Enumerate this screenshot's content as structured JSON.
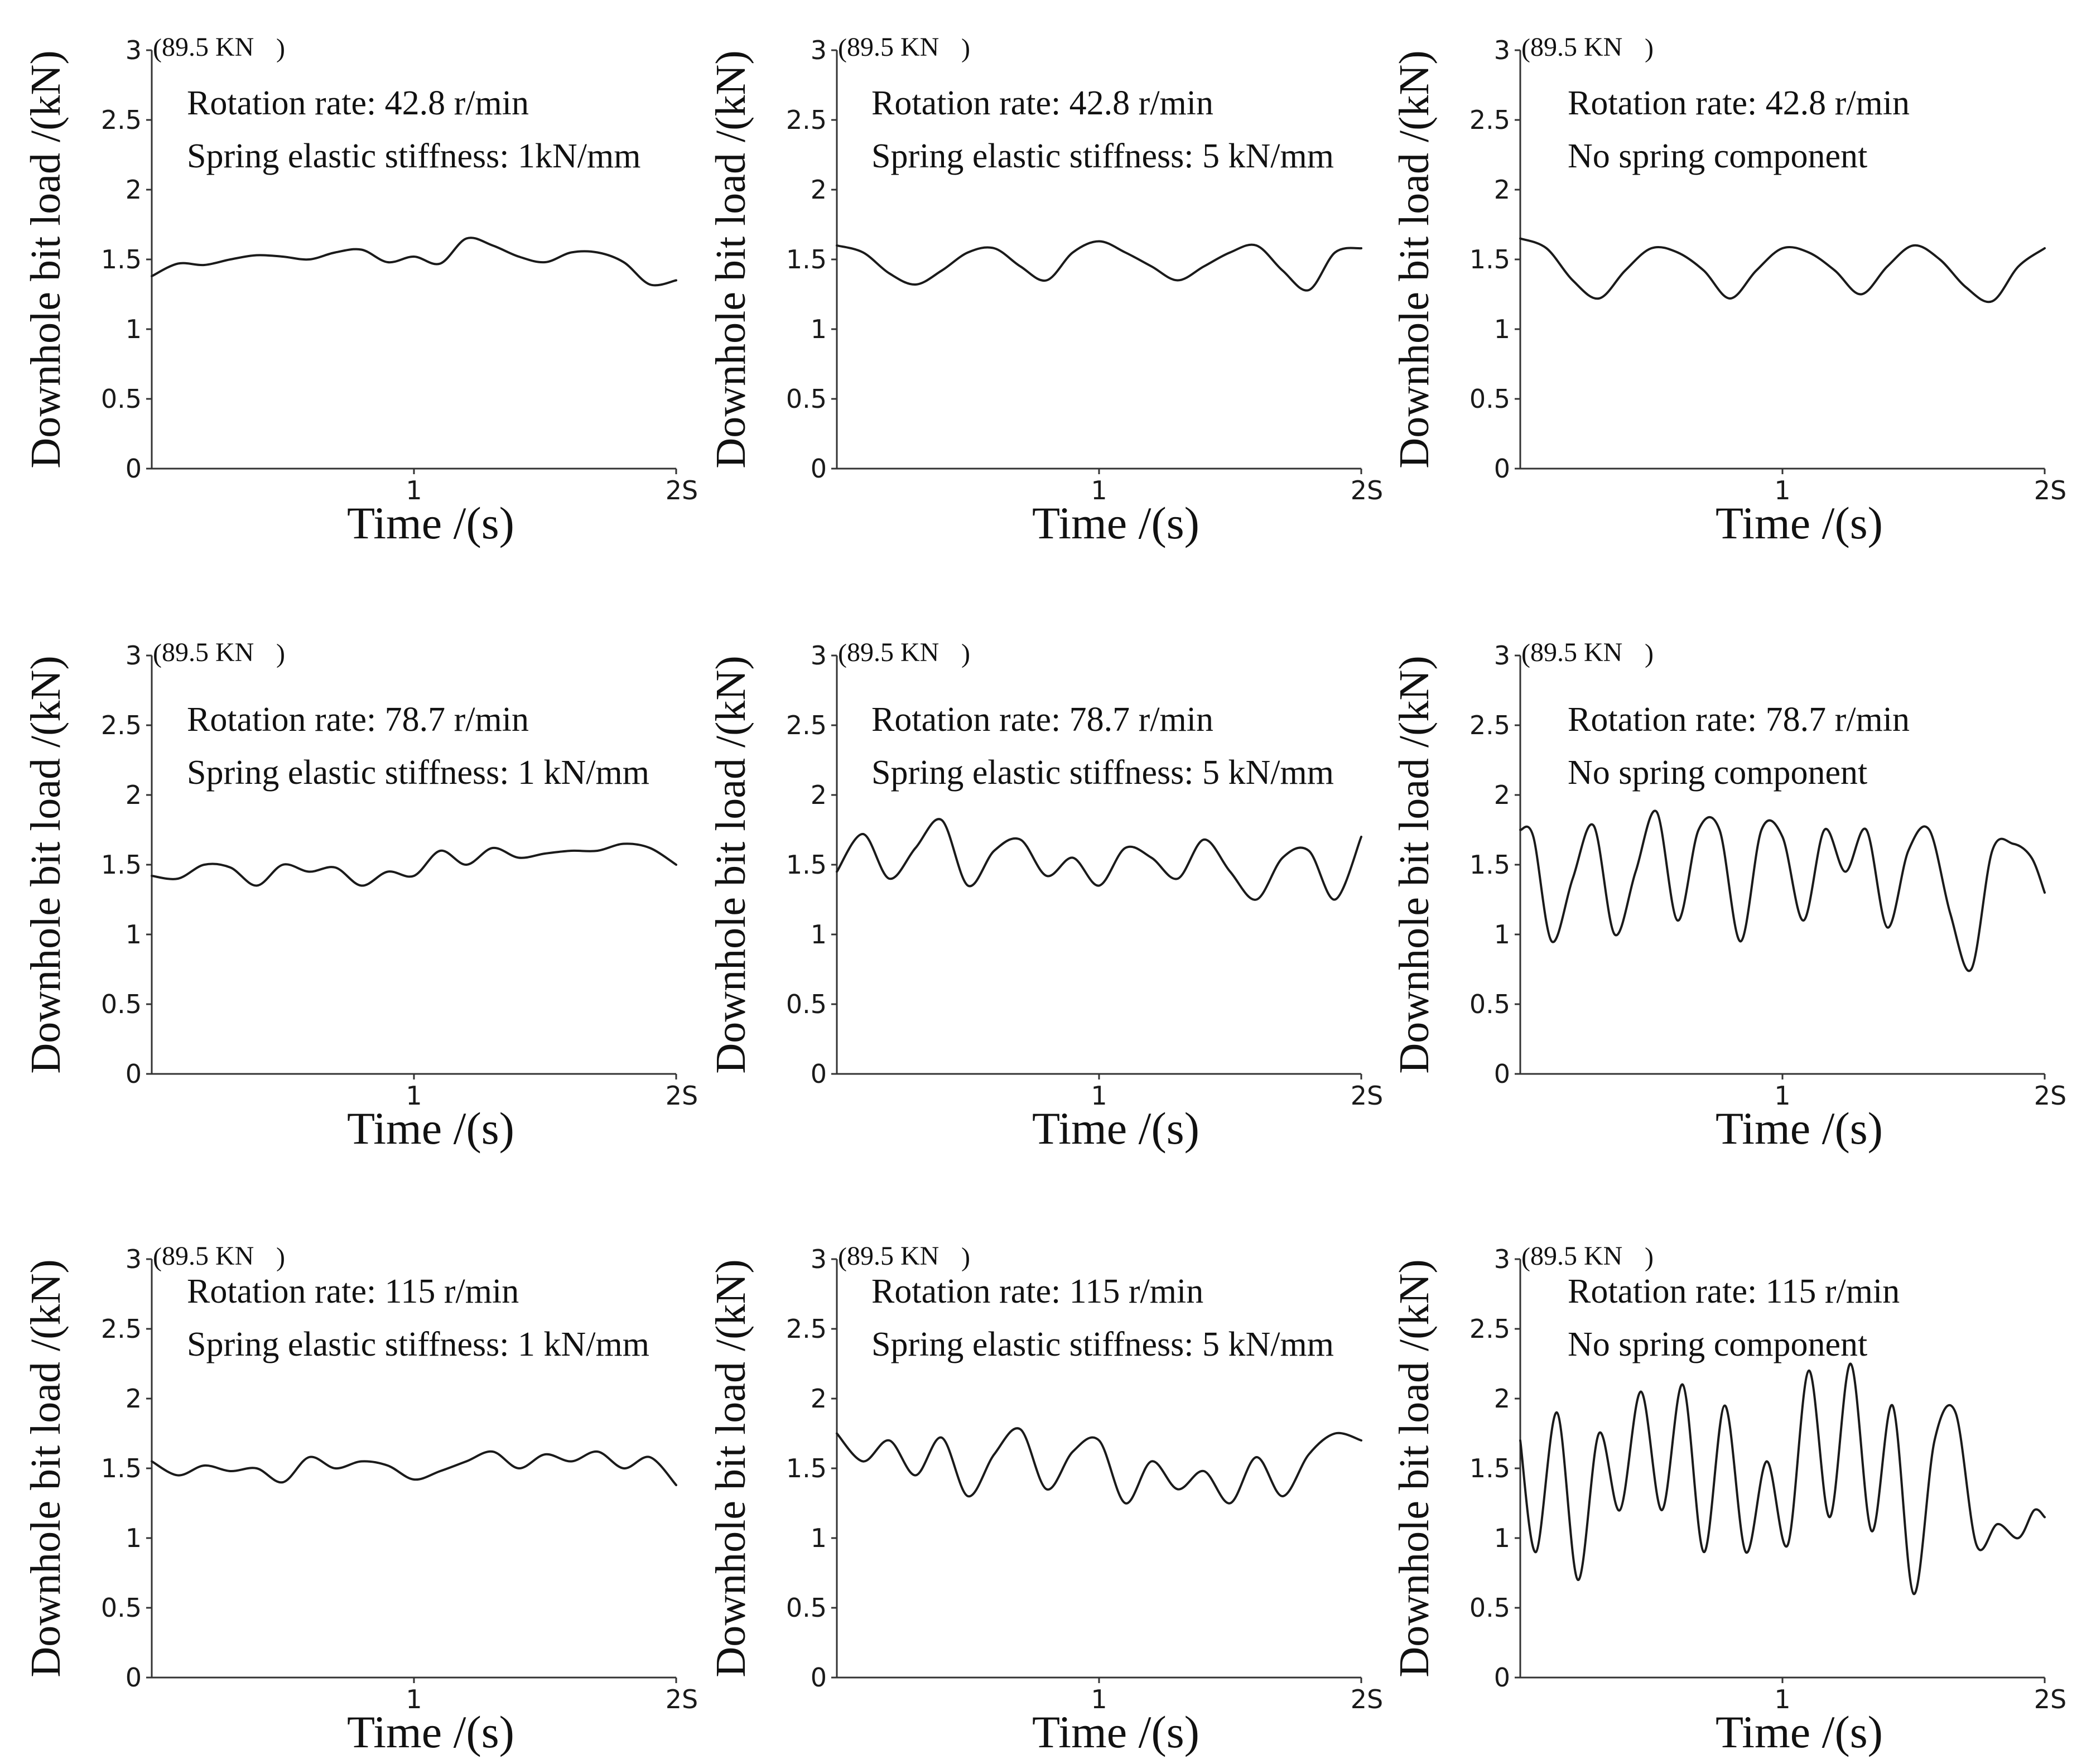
{
  "chart_data": [
    {
      "type": "line",
      "panel": "r1c1",
      "ylabel": "Downhole bit load /(kN)",
      "xlabel": "Time /(s)",
      "ylim": [
        0,
        3
      ],
      "xlim": [
        0,
        2
      ],
      "yticks": [
        "0",
        "0.5",
        "1",
        "1.5",
        "2",
        "2.5",
        "3"
      ],
      "xticks": [
        "1",
        "2S"
      ],
      "max_note": "89.5 KN",
      "annotations": [
        "Rotation rate: 42.8 r/min",
        "Spring elastic stiffness: 1kN/mm"
      ],
      "series": [
        {
          "name": "bit load",
          "x": [
            0,
            0.1,
            0.2,
            0.3,
            0.4,
            0.5,
            0.6,
            0.7,
            0.8,
            0.9,
            1.0,
            1.1,
            1.2,
            1.3,
            1.4,
            1.5,
            1.6,
            1.7,
            1.8,
            1.9,
            2.0
          ],
          "y": [
            1.38,
            1.47,
            1.46,
            1.5,
            1.53,
            1.52,
            1.5,
            1.55,
            1.57,
            1.48,
            1.52,
            1.47,
            1.65,
            1.6,
            1.52,
            1.48,
            1.55,
            1.55,
            1.48,
            1.32,
            1.35
          ]
        }
      ]
    },
    {
      "type": "line",
      "panel": "r1c2",
      "ylabel": "Downhole bit load /(kN)",
      "xlabel": "Time /(s)",
      "ylim": [
        0,
        3
      ],
      "xlim": [
        0,
        2
      ],
      "yticks": [
        "0",
        "0.5",
        "1",
        "1.5",
        "2",
        "2.5",
        "3"
      ],
      "xticks": [
        "1",
        "2S"
      ],
      "max_note": "89.5 KN",
      "annotations": [
        "Rotation rate: 42.8 r/min",
        "Spring elastic stiffness: 5 kN/mm"
      ],
      "series": [
        {
          "name": "bit load",
          "x": [
            0,
            0.1,
            0.2,
            0.3,
            0.4,
            0.5,
            0.6,
            0.7,
            0.8,
            0.9,
            1.0,
            1.1,
            1.2,
            1.3,
            1.4,
            1.5,
            1.6,
            1.7,
            1.8,
            1.9,
            2.0
          ],
          "y": [
            1.6,
            1.55,
            1.4,
            1.32,
            1.42,
            1.55,
            1.58,
            1.45,
            1.35,
            1.55,
            1.63,
            1.55,
            1.45,
            1.35,
            1.45,
            1.55,
            1.6,
            1.42,
            1.28,
            1.55,
            1.58
          ]
        }
      ]
    },
    {
      "type": "line",
      "panel": "r1c3",
      "ylabel": "Downhole bit load /(kN)",
      "xlabel": "Time /(s)",
      "ylim": [
        0,
        3
      ],
      "xlim": [
        0,
        2
      ],
      "yticks": [
        "0",
        "0.5",
        "1",
        "1.5",
        "2",
        "2.5",
        "3"
      ],
      "xticks": [
        "1",
        "2S"
      ],
      "max_note": "89.5 KN",
      "annotations": [
        "Rotation rate: 42.8 r/min",
        "No spring component"
      ],
      "series": [
        {
          "name": "bit load",
          "x": [
            0,
            0.1,
            0.2,
            0.3,
            0.4,
            0.5,
            0.6,
            0.7,
            0.8,
            0.9,
            1.0,
            1.1,
            1.2,
            1.3,
            1.4,
            1.5,
            1.6,
            1.7,
            1.8,
            1.9,
            2.0
          ],
          "y": [
            1.65,
            1.58,
            1.35,
            1.22,
            1.42,
            1.58,
            1.55,
            1.42,
            1.22,
            1.42,
            1.58,
            1.55,
            1.42,
            1.25,
            1.45,
            1.6,
            1.5,
            1.3,
            1.2,
            1.45,
            1.58
          ]
        }
      ]
    },
    {
      "type": "line",
      "panel": "r2c1",
      "ylabel": "Downhole bit load /(kN)",
      "xlabel": "Time /(s)",
      "ylim": [
        0,
        3
      ],
      "xlim": [
        0,
        2
      ],
      "yticks": [
        "0",
        "0.5",
        "1",
        "1.5",
        "2",
        "2.5",
        "3"
      ],
      "xticks": [
        "1",
        "2S"
      ],
      "max_note": "89.5 KN",
      "annotations": [
        "Rotation rate: 78.7 r/min",
        "Spring elastic stiffness: 1 kN/mm"
      ],
      "series": [
        {
          "name": "bit load",
          "x": [
            0,
            0.1,
            0.2,
            0.3,
            0.4,
            0.5,
            0.6,
            0.7,
            0.8,
            0.9,
            1.0,
            1.1,
            1.2,
            1.3,
            1.4,
            1.5,
            1.6,
            1.7,
            1.8,
            1.9,
            2.0
          ],
          "y": [
            1.42,
            1.4,
            1.5,
            1.48,
            1.35,
            1.5,
            1.45,
            1.48,
            1.35,
            1.45,
            1.42,
            1.6,
            1.5,
            1.62,
            1.55,
            1.58,
            1.6,
            1.6,
            1.65,
            1.62,
            1.5
          ]
        }
      ]
    },
    {
      "type": "line",
      "panel": "r2c2",
      "ylabel": "Downhole bit load /(kN)",
      "xlabel": "Time /(s)",
      "ylim": [
        0,
        3
      ],
      "xlim": [
        0,
        2
      ],
      "yticks": [
        "0",
        "0.5",
        "1",
        "1.5",
        "2",
        "2.5",
        "3"
      ],
      "xticks": [
        "1",
        "2S"
      ],
      "max_note": "89.5 KN",
      "annotations": [
        "Rotation rate: 78.7 r/min",
        "Spring elastic stiffness: 5 kN/mm"
      ],
      "series": [
        {
          "name": "bit load",
          "x": [
            0,
            0.1,
            0.2,
            0.3,
            0.4,
            0.5,
            0.6,
            0.7,
            0.8,
            0.9,
            1.0,
            1.1,
            1.2,
            1.3,
            1.4,
            1.5,
            1.6,
            1.7,
            1.8,
            1.9,
            2.0
          ],
          "y": [
            1.45,
            1.72,
            1.4,
            1.62,
            1.82,
            1.35,
            1.6,
            1.68,
            1.42,
            1.55,
            1.35,
            1.62,
            1.55,
            1.4,
            1.68,
            1.45,
            1.25,
            1.55,
            1.6,
            1.25,
            1.7
          ]
        }
      ]
    },
    {
      "type": "line",
      "panel": "r2c3",
      "ylabel": "Downhole bit load /(kN)",
      "xlabel": "Time /(s)",
      "ylim": [
        0,
        3
      ],
      "xlim": [
        0,
        2
      ],
      "yticks": [
        "0",
        "0.5",
        "1",
        "1.5",
        "2",
        "2.5",
        "3"
      ],
      "xticks": [
        "1",
        "2S"
      ],
      "max_note": "89.5 KN",
      "annotations": [
        "Rotation rate: 78.7 r/min",
        "No spring component"
      ],
      "series": [
        {
          "name": "bit load",
          "x": [
            0,
            0.05,
            0.12,
            0.2,
            0.28,
            0.36,
            0.44,
            0.52,
            0.6,
            0.68,
            0.76,
            0.84,
            0.92,
            1.0,
            1.08,
            1.16,
            1.24,
            1.32,
            1.4,
            1.48,
            1.56,
            1.64,
            1.72,
            1.8,
            1.88,
            1.95,
            2.0
          ],
          "y": [
            1.75,
            1.7,
            0.95,
            1.4,
            1.78,
            1.0,
            1.45,
            1.88,
            1.1,
            1.75,
            1.75,
            0.95,
            1.75,
            1.7,
            1.1,
            1.75,
            1.45,
            1.75,
            1.05,
            1.6,
            1.75,
            1.15,
            0.75,
            1.6,
            1.65,
            1.55,
            1.3
          ]
        }
      ]
    },
    {
      "type": "line",
      "panel": "r3c1",
      "ylabel": "Downhole bit load /(kN)",
      "xlabel": "Time /(s)",
      "ylim": [
        0,
        3
      ],
      "xlim": [
        0,
        2
      ],
      "yticks": [
        "0",
        "0.5",
        "1",
        "1.5",
        "2",
        "2.5",
        "3"
      ],
      "xticks": [
        "1",
        "2S"
      ],
      "max_note": "89.5 KN",
      "annotations": [
        "Rotation rate: 115 r/min",
        "Spring elastic stiffness: 1 kN/mm"
      ],
      "series": [
        {
          "name": "bit load",
          "x": [
            0,
            0.1,
            0.2,
            0.3,
            0.4,
            0.5,
            0.6,
            0.7,
            0.8,
            0.9,
            1.0,
            1.1,
            1.2,
            1.3,
            1.4,
            1.5,
            1.6,
            1.7,
            1.8,
            1.9,
            2.0
          ],
          "y": [
            1.55,
            1.45,
            1.52,
            1.48,
            1.5,
            1.4,
            1.58,
            1.5,
            1.55,
            1.52,
            1.42,
            1.48,
            1.55,
            1.62,
            1.5,
            1.6,
            1.55,
            1.62,
            1.5,
            1.58,
            1.38
          ]
        }
      ]
    },
    {
      "type": "line",
      "panel": "r3c2",
      "ylabel": "Downhole bit load /(kN)",
      "xlabel": "Time /(s)",
      "ylim": [
        0,
        3
      ],
      "xlim": [
        0,
        2
      ],
      "yticks": [
        "0",
        "0.5",
        "1",
        "1.5",
        "2",
        "2.5",
        "3"
      ],
      "xticks": [
        "1",
        "2S"
      ],
      "max_note": "89.5 KN",
      "annotations": [
        "Rotation rate: 115 r/min",
        "Spring elastic stiffness: 5 kN/mm"
      ],
      "series": [
        {
          "name": "bit load",
          "x": [
            0,
            0.1,
            0.2,
            0.3,
            0.4,
            0.5,
            0.6,
            0.7,
            0.8,
            0.9,
            1.0,
            1.1,
            1.2,
            1.3,
            1.4,
            1.5,
            1.6,
            1.7,
            1.8,
            1.9,
            2.0
          ],
          "y": [
            1.75,
            1.55,
            1.7,
            1.45,
            1.72,
            1.3,
            1.6,
            1.78,
            1.35,
            1.62,
            1.7,
            1.25,
            1.55,
            1.35,
            1.48,
            1.25,
            1.58,
            1.3,
            1.6,
            1.75,
            1.7
          ]
        }
      ]
    },
    {
      "type": "line",
      "panel": "r3c3",
      "ylabel": "Downhole bit load /(kN)",
      "xlabel": "Time /(s)",
      "ylim": [
        0,
        3
      ],
      "xlim": [
        0,
        2
      ],
      "yticks": [
        "0",
        "0.5",
        "1",
        "1.5",
        "2",
        "2.5",
        "3"
      ],
      "xticks": [
        "1",
        "2S"
      ],
      "max_note": "89.5 KN",
      "annotations": [
        "Rotation rate: 115 r/min",
        "No spring component"
      ],
      "series": [
        {
          "name": "bit load",
          "x": [
            0,
            0.06,
            0.14,
            0.22,
            0.3,
            0.38,
            0.46,
            0.54,
            0.62,
            0.7,
            0.78,
            0.86,
            0.94,
            1.02,
            1.1,
            1.18,
            1.26,
            1.34,
            1.42,
            1.5,
            1.58,
            1.66,
            1.74,
            1.82,
            1.9,
            1.96,
            2.0
          ],
          "y": [
            1.7,
            0.9,
            1.9,
            0.7,
            1.75,
            1.2,
            2.05,
            1.2,
            2.1,
            0.9,
            1.95,
            0.9,
            1.55,
            0.95,
            2.2,
            1.15,
            2.25,
            1.05,
            1.95,
            0.6,
            1.7,
            1.9,
            0.95,
            1.1,
            1.0,
            1.2,
            1.15
          ]
        }
      ]
    }
  ]
}
